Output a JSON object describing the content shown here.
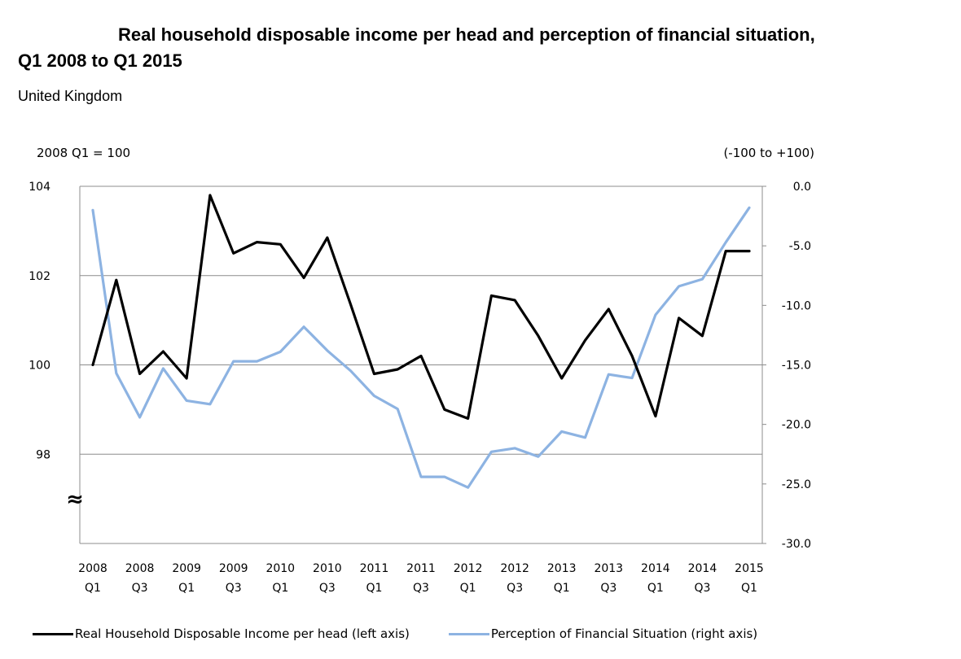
{
  "header": {
    "title_line1": "Real household disposable income per head and perception of financial situation,",
    "title_line2": "Q1 2008 to Q1 2015",
    "subtitle": "United Kingdom"
  },
  "chart_data": {
    "type": "line",
    "title": "Real household disposable income per head and perception of financial situation, Q1 2008 to Q1 2015",
    "subtitle": "United Kingdom",
    "left_axis_unit": "2008 Q1 = 100",
    "right_axis_unit": "(-100 to +100)",
    "left_ylim": [
      96,
      104
    ],
    "left_ticks": [
      "104",
      "102",
      "100",
      "98"
    ],
    "axis_break_symbol": "≈",
    "right_ylim": [
      -30,
      0
    ],
    "right_ticks": [
      "0.0",
      "-5.0",
      "-10.0",
      "-15.0",
      "-20.0",
      "-25.0",
      "-30.0"
    ],
    "grid": "horizontal at left-axis ticks",
    "x_tick_labels": [
      [
        "2008",
        "Q1"
      ],
      [
        "2008",
        "Q3"
      ],
      [
        "2009",
        "Q1"
      ],
      [
        "2009",
        "Q3"
      ],
      [
        "2010",
        "Q1"
      ],
      [
        "2010",
        "Q3"
      ],
      [
        "2011",
        "Q1"
      ],
      [
        "2011",
        "Q3"
      ],
      [
        "2012",
        "Q1"
      ],
      [
        "2012",
        "Q3"
      ],
      [
        "2013",
        "Q1"
      ],
      [
        "2013",
        "Q3"
      ],
      [
        "2014",
        "Q1"
      ],
      [
        "2014",
        "Q3"
      ],
      [
        "2015",
        "Q1"
      ]
    ],
    "x": [
      "2008 Q1",
      "2008 Q2",
      "2008 Q3",
      "2008 Q4",
      "2009 Q1",
      "2009 Q2",
      "2009 Q3",
      "2009 Q4",
      "2010 Q1",
      "2010 Q2",
      "2010 Q3",
      "2010 Q4",
      "2011 Q1",
      "2011 Q2",
      "2011 Q3",
      "2011 Q4",
      "2012 Q1",
      "2012 Q2",
      "2012 Q3",
      "2012 Q4",
      "2013 Q1",
      "2013 Q2",
      "2013 Q3",
      "2013 Q4",
      "2014 Q1",
      "2014 Q2",
      "2014 Q3",
      "2014 Q4",
      "2015 Q1"
    ],
    "legend_position": "bottom",
    "series": [
      {
        "name": "Real Household Disposable Income per head (left axis)",
        "axis": "left",
        "color": "#000000",
        "values": [
          100.0,
          101.9,
          99.8,
          100.3,
          99.7,
          103.8,
          102.5,
          102.75,
          102.7,
          101.95,
          102.85,
          101.35,
          99.8,
          99.9,
          100.2,
          99.0,
          98.8,
          101.55,
          101.45,
          100.65,
          99.7,
          100.55,
          101.25,
          100.2,
          98.85,
          101.05,
          100.65,
          102.55,
          102.55
        ]
      },
      {
        "name": "Perception of Financial Situation (right axis)",
        "axis": "right",
        "color": "#8db3e2",
        "values": [
          -2.0,
          -15.7,
          -19.4,
          -15.3,
          -18.0,
          -18.3,
          -14.7,
          -14.7,
          -13.9,
          -11.8,
          -13.8,
          -15.5,
          -17.6,
          -18.7,
          -24.4,
          -24.4,
          -25.3,
          -22.3,
          -22.0,
          -22.7,
          -20.6,
          -21.1,
          -15.8,
          -16.1,
          -10.8,
          -8.4,
          -7.8,
          -4.7,
          -1.8
        ]
      }
    ]
  }
}
